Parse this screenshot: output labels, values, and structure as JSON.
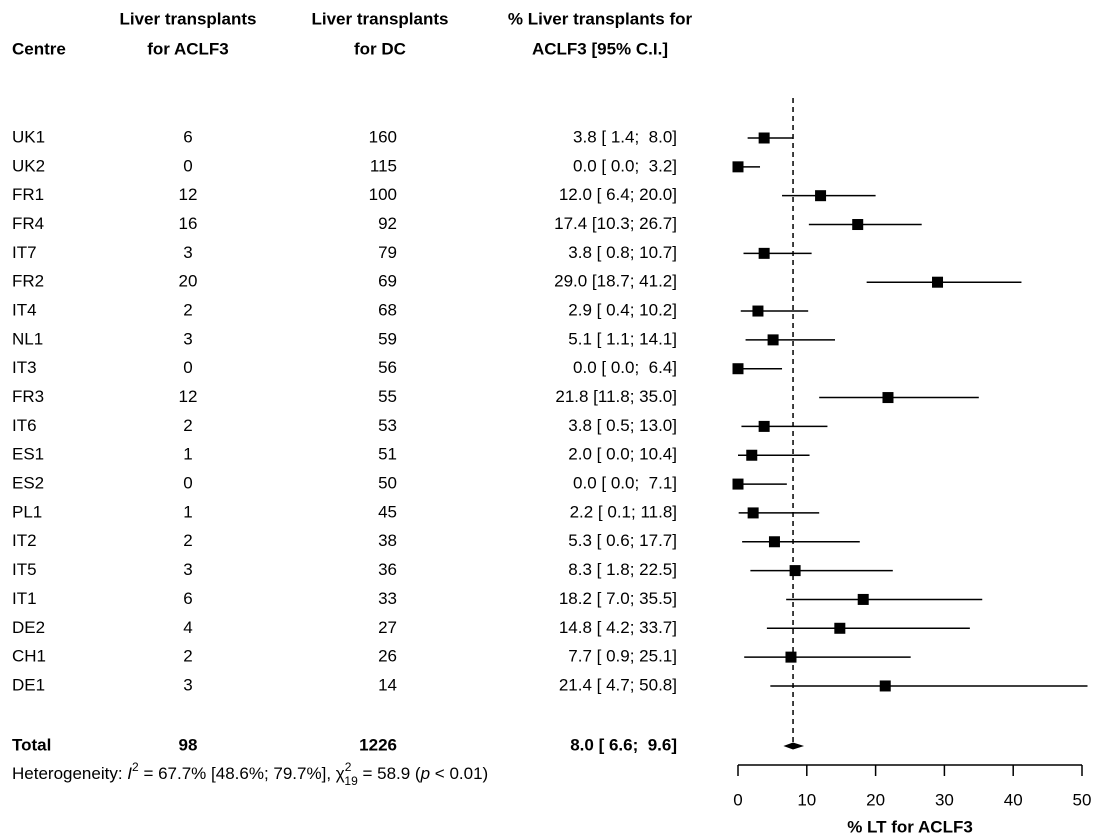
{
  "chart_data": {
    "type": "forest",
    "headers": [
      [
        "Centre"
      ],
      [
        "Liver transplants",
        "for ACLF3"
      ],
      [
        "Liver transplants",
        "for DC"
      ],
      [
        "% Liver transplants for",
        "ACLF3 [95% C.I.]"
      ]
    ],
    "categories": [
      "UK1",
      "UK2",
      "FR1",
      "FR4",
      "IT7",
      "FR2",
      "IT4",
      "NL1",
      "IT3",
      "FR3",
      "IT6",
      "ES1",
      "ES2",
      "PL1",
      "IT2",
      "IT5",
      "IT1",
      "DE2",
      "CH1",
      "DE1"
    ],
    "aclf3": [
      6,
      0,
      12,
      16,
      3,
      20,
      2,
      3,
      0,
      12,
      2,
      1,
      0,
      1,
      2,
      3,
      6,
      4,
      2,
      3
    ],
    "dc": [
      160,
      115,
      100,
      92,
      79,
      69,
      68,
      59,
      56,
      55,
      53,
      51,
      50,
      45,
      38,
      36,
      33,
      27,
      26,
      14
    ],
    "values": [
      3.8,
      0,
      12.0,
      17.4,
      3.8,
      29.0,
      2.9,
      5.1,
      0,
      21.8,
      3.8,
      2.0,
      0,
      2.2,
      5.3,
      8.3,
      18.2,
      14.8,
      7.7,
      21.4
    ],
    "lower": [
      1.4,
      0,
      6.4,
      10.3,
      0.8,
      18.7,
      0.4,
      1.1,
      0,
      11.8,
      0.5,
      0,
      0,
      0.1,
      0.6,
      1.8,
      7.0,
      4.2,
      0.9,
      4.7
    ],
    "upper": [
      8.0,
      3.2,
      20.0,
      26.7,
      10.7,
      41.2,
      10.2,
      14.1,
      6.4,
      35.0,
      13.0,
      10.4,
      7.1,
      11.8,
      17.7,
      22.5,
      35.5,
      33.7,
      25.1,
      50.8
    ],
    "value_labels": [
      "3.8 [ 1.4;  8.0]",
      "0.0 [ 0.0;  3.2]",
      "12.0 [ 6.4; 20.0]",
      "17.4 [10.3; 26.7]",
      "3.8 [ 0.8; 10.7]",
      "29.0 [18.7; 41.2]",
      "2.9 [ 0.4; 10.2]",
      "5.1 [ 1.1; 14.1]",
      "0.0 [ 0.0;  6.4]",
      "21.8 [11.8; 35.0]",
      "3.8 [ 0.5; 13.0]",
      "2.0 [ 0.0; 10.4]",
      "0.0 [ 0.0;  7.1]",
      "2.2 [ 0.1; 11.8]",
      "5.3 [ 0.6; 17.7]",
      "8.3 [ 1.8; 22.5]",
      "18.2 [ 7.0; 35.5]",
      "14.8 [ 4.2; 33.7]",
      "7.7 [ 0.9; 25.1]",
      "21.4 [ 4.7; 50.8]"
    ],
    "total": {
      "label": "Total",
      "aclf3": 98,
      "dc": 1226,
      "value": 8.0,
      "lower": 6.6,
      "upper": 9.6,
      "value_label": "8.0 [ 6.6;  9.6]"
    },
    "heterogeneity": [
      {
        "text": "Heterogeneity: ",
        "style": "normal"
      },
      {
        "text": "I",
        "style": "italic"
      },
      {
        "text": "2",
        "style": "sup"
      },
      {
        "text": " = 67.7% [48.6%; 79.7%], ",
        "style": "normal"
      },
      {
        "text": "χ",
        "style": "normal"
      },
      {
        "text": "2",
        "style": "sup"
      },
      {
        "text": "19",
        "style": "sub"
      },
      {
        "text": " = 58.9 (",
        "style": "normal"
      },
      {
        "text": "p",
        "style": "italic"
      },
      {
        "text": " < 0.01)",
        "style": "normal"
      }
    ],
    "xlabel": "% LT for ACLF3",
    "xlim": [
      0,
      50
    ],
    "xticks": [
      0,
      10,
      20,
      30,
      40,
      50
    ],
    "color": "#000000"
  }
}
